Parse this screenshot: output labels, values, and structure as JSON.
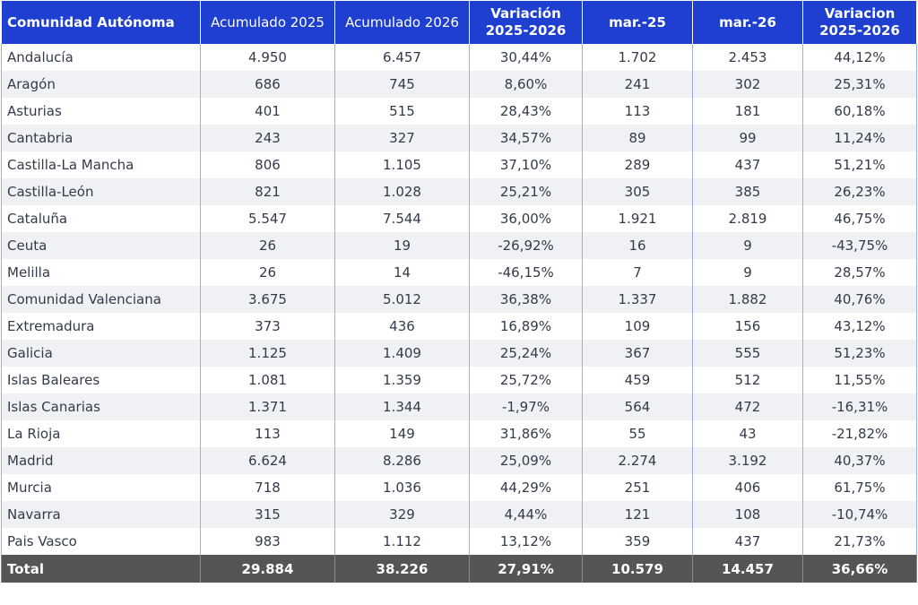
{
  "colors": {
    "header_bg": "#1e3fd0",
    "header_text": "#ffffff",
    "row_alt": "#f0f1f4",
    "total_bg": "#555555",
    "divider": "#9aaeea"
  },
  "headers": [
    "Comunidad Autónoma",
    "Acumulado 2025",
    "Acumulado 2026",
    "Variación\n2025-2026",
    "mar.-25",
    "mar.-26",
    "Variacion\n2025-2026"
  ],
  "rows": [
    {
      "region": "Andalucía",
      "acum2025": "4.950",
      "acum2026": "6.457",
      "var_acum": "30,44%",
      "mar25": "1.702",
      "mar26": "2.453",
      "var_mar": "44,12%"
    },
    {
      "region": "Aragón",
      "acum2025": "686",
      "acum2026": "745",
      "var_acum": "8,60%",
      "mar25": "241",
      "mar26": "302",
      "var_mar": "25,31%"
    },
    {
      "region": "Asturias",
      "acum2025": "401",
      "acum2026": "515",
      "var_acum": "28,43%",
      "mar25": "113",
      "mar26": "181",
      "var_mar": "60,18%"
    },
    {
      "region": "Cantabria",
      "acum2025": "243",
      "acum2026": "327",
      "var_acum": "34,57%",
      "mar25": "89",
      "mar26": "99",
      "var_mar": "11,24%"
    },
    {
      "region": "Castilla-La Mancha",
      "acum2025": "806",
      "acum2026": "1.105",
      "var_acum": "37,10%",
      "mar25": "289",
      "mar26": "437",
      "var_mar": "51,21%"
    },
    {
      "region": "Castilla-León",
      "acum2025": "821",
      "acum2026": "1.028",
      "var_acum": "25,21%",
      "mar25": "305",
      "mar26": "385",
      "var_mar": "26,23%"
    },
    {
      "region": "Cataluña",
      "acum2025": "5.547",
      "acum2026": "7.544",
      "var_acum": "36,00%",
      "mar25": "1.921",
      "mar26": "2.819",
      "var_mar": "46,75%"
    },
    {
      "region": "Ceuta",
      "acum2025": "26",
      "acum2026": "19",
      "var_acum": "-26,92%",
      "mar25": "16",
      "mar26": "9",
      "var_mar": "-43,75%"
    },
    {
      "region": "Melilla",
      "acum2025": "26",
      "acum2026": "14",
      "var_acum": "-46,15%",
      "mar25": "7",
      "mar26": "9",
      "var_mar": "28,57%"
    },
    {
      "region": "Comunidad Valenciana",
      "acum2025": "3.675",
      "acum2026": "5.012",
      "var_acum": "36,38%",
      "mar25": "1.337",
      "mar26": "1.882",
      "var_mar": "40,76%"
    },
    {
      "region": "Extremadura",
      "acum2025": "373",
      "acum2026": "436",
      "var_acum": "16,89%",
      "mar25": "109",
      "mar26": "156",
      "var_mar": "43,12%"
    },
    {
      "region": "Galicia",
      "acum2025": "1.125",
      "acum2026": "1.409",
      "var_acum": "25,24%",
      "mar25": "367",
      "mar26": "555",
      "var_mar": "51,23%"
    },
    {
      "region": "Islas Baleares",
      "acum2025": "1.081",
      "acum2026": "1.359",
      "var_acum": "25,72%",
      "mar25": "459",
      "mar26": "512",
      "var_mar": "11,55%"
    },
    {
      "region": "Islas Canarias",
      "acum2025": "1.371",
      "acum2026": "1.344",
      "var_acum": "-1,97%",
      "mar25": "564",
      "mar26": "472",
      "var_mar": "-16,31%"
    },
    {
      "region": "La Rioja",
      "acum2025": "113",
      "acum2026": "149",
      "var_acum": "31,86%",
      "mar25": "55",
      "mar26": "43",
      "var_mar": "-21,82%"
    },
    {
      "region": "Madrid",
      "acum2025": "6.624",
      "acum2026": "8.286",
      "var_acum": "25,09%",
      "mar25": "2.274",
      "mar26": "3.192",
      "var_mar": "40,37%"
    },
    {
      "region": "Murcia",
      "acum2025": "718",
      "acum2026": "1.036",
      "var_acum": "44,29%",
      "mar25": "251",
      "mar26": "406",
      "var_mar": "61,75%"
    },
    {
      "region": "Navarra",
      "acum2025": "315",
      "acum2026": "329",
      "var_acum": "4,44%",
      "mar25": "121",
      "mar26": "108",
      "var_mar": "-10,74%"
    },
    {
      "region": "Pais Vasco",
      "acum2025": "983",
      "acum2026": "1.112",
      "var_acum": "13,12%",
      "mar25": "359",
      "mar26": "437",
      "var_mar": "21,73%"
    }
  ],
  "total": {
    "region": "Total",
    "acum2025": "29.884",
    "acum2026": "38.226",
    "var_acum": "27,91%",
    "mar25": "10.579",
    "mar26": "14.457",
    "var_mar": "36,66%"
  }
}
